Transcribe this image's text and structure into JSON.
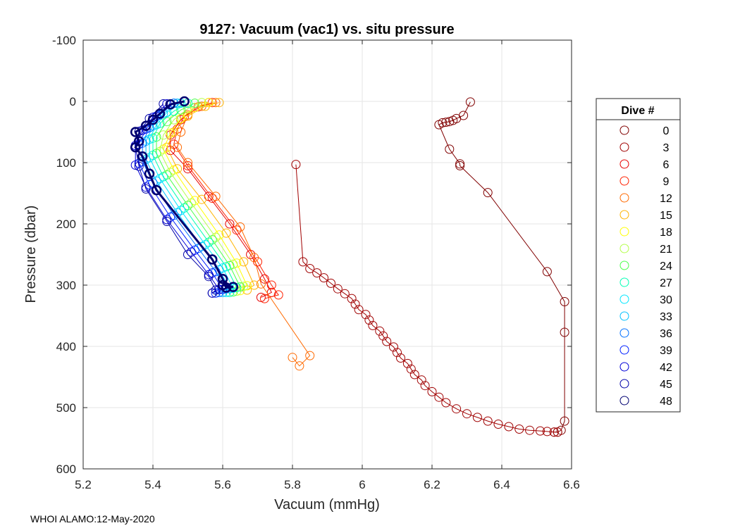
{
  "chart_data": {
    "type": "scatter",
    "title": "9127: Vacuum (vac1) vs. situ pressure",
    "xlabel": "Vacuum (mmHg)",
    "ylabel": "Pressure (dbar)",
    "xlim": [
      5.2,
      6.6
    ],
    "ylim": [
      -100,
      600
    ],
    "y_reversed": true,
    "grid": true,
    "xticks": [
      "5.2",
      "5.4",
      "5.6",
      "5.8",
      "6",
      "6.2",
      "6.4",
      "6.6"
    ],
    "yticks": [
      "-100",
      "0",
      "100",
      "200",
      "300",
      "400",
      "500",
      "600"
    ],
    "legend": {
      "title": "Dive #",
      "placement": "right-outside",
      "entries": [
        {
          "label": "0",
          "color": "#800000"
        },
        {
          "label": "3",
          "color": "#a00000"
        },
        {
          "label": "6",
          "color": "#e60000"
        },
        {
          "label": "9",
          "color": "#ff2000"
        },
        {
          "label": "12",
          "color": "#ff6a00"
        },
        {
          "label": "15",
          "color": "#ffb400"
        },
        {
          "label": "18",
          "color": "#ffff00"
        },
        {
          "label": "21",
          "color": "#b4ff4a"
        },
        {
          "label": "24",
          "color": "#4aff4a"
        },
        {
          "label": "27",
          "color": "#00ffb4"
        },
        {
          "label": "30",
          "color": "#00e6ff"
        },
        {
          "label": "33",
          "color": "#00c0ff"
        },
        {
          "label": "36",
          "color": "#0070ff"
        },
        {
          "label": "39",
          "color": "#0020ff"
        },
        {
          "label": "42",
          "color": "#0000d8"
        },
        {
          "label": "45",
          "color": "#0000a8"
        },
        {
          "label": "48",
          "color": "#000070"
        }
      ]
    },
    "series": [
      {
        "name": "0",
        "color": "#800000",
        "points": [
          [
            6.31,
            1
          ],
          [
            6.29,
            23
          ],
          [
            6.27,
            28
          ],
          [
            6.26,
            31
          ],
          [
            6.25,
            33
          ],
          [
            6.24,
            34
          ],
          [
            6.23,
            35
          ],
          [
            6.22,
            38
          ],
          [
            6.25,
            78
          ],
          [
            6.28,
            102
          ],
          [
            6.28,
            105
          ],
          [
            6.36,
            149
          ],
          [
            6.53,
            278
          ],
          [
            6.58,
            327
          ],
          [
            6.58,
            377
          ],
          [
            6.58,
            522
          ],
          [
            6.57,
            537
          ],
          [
            6.56,
            540
          ],
          [
            6.55,
            540
          ]
        ]
      },
      {
        "name": "3",
        "color": "#a00000",
        "points": [
          [
            5.81,
            103
          ],
          [
            5.83,
            262
          ],
          [
            5.85,
            273
          ],
          [
            5.87,
            280
          ],
          [
            5.89,
            288
          ],
          [
            5.91,
            297
          ],
          [
            5.93,
            306
          ],
          [
            5.95,
            314
          ],
          [
            5.97,
            322
          ],
          [
            5.98,
            331
          ],
          [
            5.99,
            340
          ],
          [
            6.01,
            348
          ],
          [
            6.02,
            357
          ],
          [
            6.03,
            366
          ],
          [
            6.05,
            375
          ],
          [
            6.06,
            383
          ],
          [
            6.07,
            392
          ],
          [
            6.09,
            401
          ],
          [
            6.1,
            410
          ],
          [
            6.11,
            419
          ],
          [
            6.13,
            428
          ],
          [
            6.14,
            437
          ],
          [
            6.15,
            446
          ],
          [
            6.17,
            455
          ],
          [
            6.18,
            464
          ],
          [
            6.2,
            474
          ],
          [
            6.22,
            483
          ],
          [
            6.24,
            492
          ],
          [
            6.27,
            502
          ],
          [
            6.3,
            510
          ],
          [
            6.33,
            516
          ],
          [
            6.36,
            522
          ],
          [
            6.39,
            527
          ],
          [
            6.42,
            531
          ],
          [
            6.45,
            535
          ],
          [
            6.48,
            537
          ],
          [
            6.51,
            538
          ],
          [
            6.53,
            539
          ],
          [
            6.55,
            540
          ],
          [
            6.56,
            540
          ]
        ]
      },
      {
        "name": "6",
        "color": "#e60000",
        "points": [
          [
            5.56,
            2
          ],
          [
            5.52,
            10
          ],
          [
            5.48,
            30
          ],
          [
            5.45,
            55
          ],
          [
            5.45,
            80
          ],
          [
            5.5,
            110
          ],
          [
            5.56,
            155
          ],
          [
            5.62,
            200
          ],
          [
            5.68,
            250
          ],
          [
            5.72,
            290
          ],
          [
            5.74,
            312
          ],
          [
            5.71,
            320
          ]
        ]
      },
      {
        "name": "9",
        "color": "#ff2000",
        "points": [
          [
            5.57,
            2
          ],
          [
            5.53,
            9
          ],
          [
            5.49,
            25
          ],
          [
            5.47,
            45
          ],
          [
            5.46,
            70
          ],
          [
            5.5,
            105
          ],
          [
            5.57,
            158
          ],
          [
            5.64,
            210
          ],
          [
            5.7,
            262
          ],
          [
            5.74,
            300
          ],
          [
            5.76,
            316
          ],
          [
            5.72,
            322
          ]
        ]
      },
      {
        "name": "12",
        "color": "#ff6a00",
        "points": [
          [
            5.58,
            2
          ],
          [
            5.54,
            8
          ],
          [
            5.5,
            22
          ],
          [
            5.48,
            50
          ],
          [
            5.47,
            75
          ],
          [
            5.5,
            100
          ],
          [
            5.58,
            155
          ],
          [
            5.65,
            205
          ],
          [
            5.69,
            255
          ],
          [
            5.71,
            298
          ],
          [
            5.85,
            415
          ],
          [
            5.82,
            432
          ],
          [
            5.8,
            418
          ]
        ]
      },
      {
        "name": "15",
        "color": "#ffb400",
        "points": [
          [
            5.59,
            2
          ],
          [
            5.55,
            8
          ],
          [
            5.5,
            24
          ],
          [
            5.46,
            50
          ],
          [
            5.44,
            75
          ],
          [
            5.47,
            110
          ],
          [
            5.54,
            160
          ],
          [
            5.61,
            215
          ],
          [
            5.66,
            262
          ],
          [
            5.69,
            300
          ],
          [
            5.67,
            308
          ]
        ]
      },
      {
        "name": "18",
        "color": "#ffff00",
        "points": [
          [
            5.56,
            2
          ],
          [
            5.52,
            10
          ],
          [
            5.48,
            28
          ],
          [
            5.45,
            52
          ],
          [
            5.43,
            78
          ],
          [
            5.46,
            112
          ],
          [
            5.52,
            162
          ],
          [
            5.59,
            218
          ],
          [
            5.64,
            264
          ],
          [
            5.67,
            301
          ],
          [
            5.65,
            309
          ]
        ]
      },
      {
        "name": "21",
        "color": "#b4ff4a",
        "points": [
          [
            5.54,
            2
          ],
          [
            5.5,
            12
          ],
          [
            5.46,
            30
          ],
          [
            5.43,
            55
          ],
          [
            5.42,
            82
          ],
          [
            5.45,
            116
          ],
          [
            5.51,
            166
          ],
          [
            5.58,
            222
          ],
          [
            5.63,
            266
          ],
          [
            5.66,
            302
          ],
          [
            5.64,
            310
          ]
        ]
      },
      {
        "name": "24",
        "color": "#4aff4a",
        "points": [
          [
            5.52,
            3
          ],
          [
            5.48,
            14
          ],
          [
            5.44,
            33
          ],
          [
            5.41,
            58
          ],
          [
            5.41,
            85
          ],
          [
            5.44,
            120
          ],
          [
            5.5,
            170
          ],
          [
            5.57,
            226
          ],
          [
            5.62,
            268
          ],
          [
            5.65,
            303
          ],
          [
            5.63,
            311
          ]
        ]
      },
      {
        "name": "27",
        "color": "#00ffb4",
        "points": [
          [
            5.5,
            3
          ],
          [
            5.46,
            16
          ],
          [
            5.42,
            36
          ],
          [
            5.4,
            60
          ],
          [
            5.4,
            88
          ],
          [
            5.43,
            123
          ],
          [
            5.49,
            174
          ],
          [
            5.56,
            230
          ],
          [
            5.61,
            270
          ],
          [
            5.64,
            304
          ],
          [
            5.62,
            312
          ]
        ]
      },
      {
        "name": "30",
        "color": "#00e6ff",
        "points": [
          [
            5.48,
            3
          ],
          [
            5.44,
            18
          ],
          [
            5.41,
            38
          ],
          [
            5.39,
            62
          ],
          [
            5.39,
            92
          ],
          [
            5.42,
            126
          ],
          [
            5.48,
            178
          ],
          [
            5.55,
            234
          ],
          [
            5.6,
            272
          ],
          [
            5.63,
            305
          ],
          [
            5.61,
            312
          ]
        ]
      },
      {
        "name": "33",
        "color": "#00c0ff",
        "points": [
          [
            5.47,
            3
          ],
          [
            5.43,
            20
          ],
          [
            5.4,
            40
          ],
          [
            5.38,
            65
          ],
          [
            5.38,
            95
          ],
          [
            5.41,
            130
          ],
          [
            5.47,
            182
          ],
          [
            5.54,
            237
          ],
          [
            5.59,
            275
          ],
          [
            5.62,
            306
          ],
          [
            5.6,
            312
          ]
        ]
      },
      {
        "name": "36",
        "color": "#0070ff",
        "points": [
          [
            5.46,
            3
          ],
          [
            5.42,
            22
          ],
          [
            5.39,
            43
          ],
          [
            5.37,
            68
          ],
          [
            5.37,
            98
          ],
          [
            5.4,
            133
          ],
          [
            5.46,
            186
          ],
          [
            5.53,
            240
          ],
          [
            5.58,
            278
          ],
          [
            5.61,
            306
          ],
          [
            5.59,
            312
          ]
        ]
      },
      {
        "name": "39",
        "color": "#0020ff",
        "points": [
          [
            5.45,
            4
          ],
          [
            5.41,
            24
          ],
          [
            5.38,
            45
          ],
          [
            5.36,
            70
          ],
          [
            5.36,
            101
          ],
          [
            5.39,
            136
          ],
          [
            5.45,
            189
          ],
          [
            5.52,
            243
          ],
          [
            5.57,
            280
          ],
          [
            5.6,
            307
          ],
          [
            5.58,
            313
          ]
        ]
      },
      {
        "name": "42",
        "color": "#0000d8",
        "points": [
          [
            5.44,
            4
          ],
          [
            5.4,
            26
          ],
          [
            5.37,
            47
          ],
          [
            5.35,
            72
          ],
          [
            5.35,
            104
          ],
          [
            5.38,
            140
          ],
          [
            5.44,
            193
          ],
          [
            5.51,
            246
          ],
          [
            5.56,
            283
          ],
          [
            5.59,
            307
          ],
          [
            5.57,
            313
          ]
        ]
      },
      {
        "name": "45",
        "color": "#0000a8",
        "points": [
          [
            5.43,
            4
          ],
          [
            5.39,
            28
          ],
          [
            5.36,
            49
          ],
          [
            5.35,
            74
          ],
          [
            5.36,
            106
          ],
          [
            5.38,
            143
          ],
          [
            5.44,
            196
          ],
          [
            5.5,
            250
          ],
          [
            5.56,
            286
          ],
          [
            5.58,
            308
          ],
          [
            5.57,
            313
          ]
        ]
      },
      {
        "name": "48",
        "color": "#000070",
        "points": [
          [
            5.49,
            0
          ],
          [
            5.45,
            5
          ],
          [
            5.42,
            20
          ],
          [
            5.4,
            30
          ],
          [
            5.38,
            40
          ],
          [
            5.35,
            50
          ],
          [
            5.36,
            65
          ],
          [
            5.35,
            75
          ],
          [
            5.37,
            90
          ],
          [
            5.39,
            118
          ],
          [
            5.41,
            145
          ],
          [
            5.57,
            258
          ],
          [
            5.6,
            290
          ],
          [
            5.61,
            304
          ],
          [
            5.63,
            303
          ],
          [
            5.6,
            300
          ]
        ]
      }
    ]
  },
  "footer": "WHOI ALAMO:12-May-2020"
}
